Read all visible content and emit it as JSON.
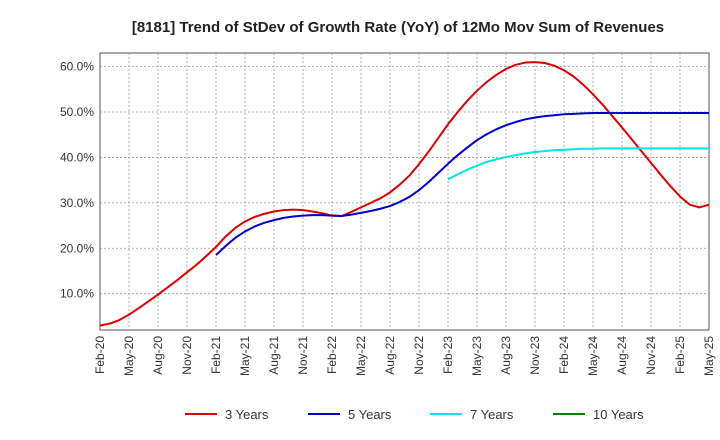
{
  "chart_data": {
    "type": "line",
    "title": "[8181]  Trend of StDev of Growth Rate (YoY) of 12Mo Mov Sum of Revenues",
    "xlabel": "",
    "ylabel": "",
    "ylim": [
      2,
      63
    ],
    "yticks": [
      10,
      20,
      30,
      40,
      50,
      60
    ],
    "ytick_labels": [
      "10.0%",
      "20.0%",
      "30.0%",
      "40.0%",
      "50.0%",
      "60.0%"
    ],
    "x_start": "2020-02",
    "x_end": "2025-05",
    "xticks": [
      "Feb-20",
      "May-20",
      "Aug-20",
      "Nov-20",
      "Feb-21",
      "May-21",
      "Aug-21",
      "Nov-21",
      "Feb-22",
      "May-22",
      "Aug-22",
      "Nov-22",
      "Feb-23",
      "May-23",
      "Aug-23",
      "Nov-23",
      "Feb-24",
      "May-24",
      "Aug-24",
      "Nov-24",
      "Feb-25",
      "May-25"
    ],
    "grid": true,
    "legend_position": "bottom",
    "series": [
      {
        "name": "3 Years",
        "color": "#dd0000",
        "start_month_index": 0,
        "values": [
          3.0,
          3.4,
          4.2,
          5.4,
          6.8,
          8.3,
          9.8,
          11.4,
          13.0,
          14.7,
          16.4,
          18.3,
          20.3,
          22.6,
          24.5,
          25.9,
          26.9,
          27.6,
          28.1,
          28.4,
          28.5,
          28.4,
          28.1,
          27.7,
          27.2,
          27.1,
          28.0,
          29.0,
          30.0,
          31.0,
          32.3,
          34.0,
          36.0,
          38.5,
          41.3,
          44.3,
          47.3,
          50.0,
          52.5,
          54.7,
          56.6,
          58.2,
          59.5,
          60.4,
          60.9,
          61.0,
          60.8,
          60.2,
          59.2,
          57.8,
          56.0,
          53.9,
          51.6,
          49.1,
          46.6,
          44.0,
          41.4,
          38.8,
          36.2,
          33.7,
          31.4,
          29.6,
          29.0,
          29.6
        ]
      },
      {
        "name": "5 Years",
        "color": "#0000cc",
        "start_month_index": 12,
        "values": [
          18.5,
          20.5,
          22.3,
          23.7,
          24.8,
          25.6,
          26.2,
          26.7,
          27.0,
          27.2,
          27.3,
          27.3,
          27.2,
          27.1,
          27.4,
          27.8,
          28.2,
          28.7,
          29.3,
          30.2,
          31.3,
          32.8,
          34.6,
          36.6,
          38.6,
          40.5,
          42.2,
          43.8,
          45.1,
          46.2,
          47.1,
          47.8,
          48.4,
          48.8,
          49.1,
          49.3,
          49.5,
          49.6,
          49.7,
          49.8,
          49.8,
          49.8,
          49.8,
          49.8,
          49.8,
          49.8,
          49.8,
          49.8,
          49.8,
          49.8,
          49.8,
          49.8
        ]
      },
      {
        "name": "7 Years",
        "color": "#00e5e5",
        "start_month_index": 36,
        "values": [
          35.2,
          36.3,
          37.3,
          38.2,
          39.0,
          39.6,
          40.1,
          40.5,
          40.9,
          41.2,
          41.4,
          41.6,
          41.7,
          41.8,
          41.9,
          41.9,
          42.0,
          42.0,
          42.0,
          42.0,
          42.0,
          42.0,
          42.0,
          42.0,
          42.0,
          42.0,
          42.0,
          42.0
        ]
      },
      {
        "name": "10 Years",
        "color": "#008000",
        "start_month_index": 0,
        "values": []
      }
    ]
  }
}
